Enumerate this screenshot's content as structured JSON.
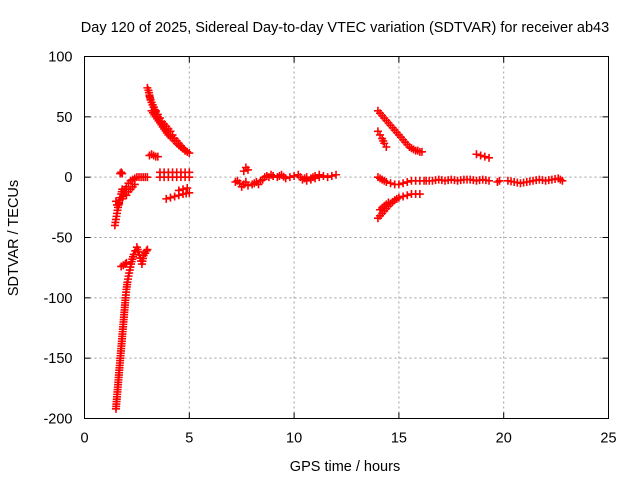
{
  "chart_data": {
    "type": "scatter",
    "title": "Day 120 of 2025, Sidereal Day-to-day VTEC variation (SDTVAR) for receiver ab43",
    "xlabel": "GPS time / hours",
    "ylabel": "SDTVAR / TECUs",
    "xlim": [
      0,
      25
    ],
    "ylim": [
      -200,
      100
    ],
    "xticks": [
      0,
      5,
      10,
      15,
      20,
      25
    ],
    "yticks": [
      -200,
      -150,
      -100,
      -50,
      0,
      50,
      100
    ],
    "grid": true,
    "marker": "plus",
    "colors": {
      "marker": "#ff0000",
      "grid": "#a0a0a0",
      "axis": "#000000"
    },
    "series": [
      {
        "name": "SDTVAR",
        "segments": [
          {
            "x": [
              1.5,
              1.53,
              1.56,
              1.6,
              1.64,
              1.68,
              1.72,
              1.76,
              1.8,
              1.84,
              1.88,
              1.92,
              1.96,
              2.0,
              2.05,
              2.1,
              2.16,
              2.22,
              2.28,
              2.35,
              2.42,
              2.5,
              2.58,
              2.66,
              2.74,
              2.82,
              2.9,
              2.96,
              3.0
            ],
            "y": [
              -192,
              -186,
              -180,
              -172,
              -164,
              -156,
              -148,
              -140,
              -132,
              -124,
              -116,
              -108,
              -100,
              -93,
              -87,
              -82,
              -77,
              -72,
              -68,
              -64,
              -61,
              -58,
              -62,
              -67,
              -72,
              -65,
              -63,
              -61,
              -60
            ]
          },
          {
            "x": [
              1.75,
              1.85,
              1.95,
              2.0
            ],
            "y": [
              -74,
              -73,
              -72,
              -71
            ]
          },
          {
            "x": [
              1.45,
              1.5,
              1.55,
              1.6,
              1.65,
              1.7,
              1.75,
              1.8
            ],
            "y": [
              -40,
              -35,
              -30,
              -25,
              -21,
              -17,
              -14,
              -10
            ]
          },
          {
            "x": [
              1.5,
              1.55,
              1.6,
              1.65
            ],
            "y": [
              -20,
              -23,
              -25,
              -22
            ]
          },
          {
            "x": [
              1.7,
              1.75,
              1.8
            ],
            "y": [
              3,
              4,
              3
            ]
          },
          {
            "x": [
              1.8,
              1.9,
              2.0,
              2.1,
              2.2,
              2.3,
              2.4,
              2.5,
              2.6,
              2.7,
              2.8,
              2.9,
              3.0
            ],
            "y": [
              -18,
              -12,
              -8,
              -5,
              -3,
              -2,
              -1,
              0,
              0,
              0,
              0,
              0,
              0
            ]
          },
          {
            "x": [
              2.0,
              2.1,
              2.2,
              2.3,
              2.4
            ],
            "y": [
              -15,
              -12,
              -10,
              -8,
              -6
            ]
          },
          {
            "x": [
              3.0,
              3.05,
              3.1,
              3.15,
              3.2,
              3.25,
              3.3,
              3.35,
              3.4,
              3.45,
              3.5
            ],
            "y": [
              74,
              72,
              68,
              64,
              62,
              60,
              58,
              56,
              54,
              52,
              50
            ]
          },
          {
            "x": [
              3.1,
              3.2,
              3.3,
              3.4,
              3.5,
              3.6,
              3.7,
              3.8,
              3.9,
              4.0,
              4.1,
              4.2,
              4.3,
              4.4,
              4.5,
              4.6,
              4.7,
              4.8,
              4.9,
              5.0
            ],
            "y": [
              67,
              62,
              58,
              55,
              52,
              49,
              46,
              44,
              42,
              40,
              38,
              35,
              32,
              30,
              28,
              26,
              24,
              22,
              21,
              20
            ]
          },
          {
            "x": [
              3.2,
              3.4,
              3.6,
              3.8,
              4.0,
              4.2,
              4.4,
              4.6,
              4.8
            ],
            "y": [
              55,
              50,
              45,
              40,
              35,
              32,
              28,
              25,
              22
            ]
          },
          {
            "x": [
              3.1,
              3.2,
              3.3,
              3.4,
              3.5
            ],
            "y": [
              18,
              19,
              18,
              17,
              17
            ]
          },
          {
            "x": [
              3.6,
              3.8,
              4.0,
              4.2,
              4.4,
              4.6,
              4.8,
              5.0
            ],
            "y": [
              4,
              4,
              4,
              4,
              4,
              4,
              4,
              4
            ]
          },
          {
            "x": [
              3.6,
              3.8,
              4.0,
              4.2,
              4.4,
              4.6,
              4.8,
              5.0
            ],
            "y": [
              0,
              0,
              0,
              0,
              0,
              0,
              0,
              0
            ]
          },
          {
            "x": [
              3.9,
              4.1,
              4.3,
              4.5,
              4.7,
              5.0
            ],
            "y": [
              -18,
              -17,
              -16,
              -15,
              -14,
              -13
            ]
          },
          {
            "x": [
              4.5,
              4.7,
              4.9
            ],
            "y": [
              -11,
              -10,
              -9
            ]
          },
          {
            "x": [
              7.2,
              7.3,
              7.4,
              7.5,
              7.6,
              7.7,
              7.8,
              8.0,
              8.1,
              8.2,
              8.3,
              8.4,
              8.5,
              8.6,
              8.7,
              8.8,
              8.9,
              9.0
            ],
            "y": [
              -4,
              -3,
              -5,
              -8,
              -6,
              -4,
              -7,
              -6,
              -5,
              -4,
              -6,
              -3,
              -2,
              0,
              1,
              0,
              2,
              1
            ]
          },
          {
            "x": [
              7.6,
              7.7,
              7.8
            ],
            "y": [
              5,
              8,
              6
            ]
          },
          {
            "x": [
              9.0,
              9.2,
              9.4,
              9.6,
              9.8,
              10.0,
              10.2,
              10.4,
              10.6,
              10.8,
              11.0,
              11.2,
              11.4,
              11.6,
              11.8,
              12.0
            ],
            "y": [
              1,
              0,
              2,
              -1,
              0,
              1,
              2,
              -2,
              0,
              -1,
              1,
              2,
              1,
              0,
              1,
              2
            ]
          },
          {
            "x": [
              10.6,
              10.8,
              11.0,
              11.2
            ],
            "y": [
              -3,
              -2,
              -1,
              0
            ]
          },
          {
            "x": [
              14.0,
              14.1,
              14.2,
              14.3,
              14.4,
              14.5,
              14.6,
              14.7,
              14.8,
              14.9,
              15.0,
              15.1,
              15.2,
              15.3,
              15.4,
              15.5,
              15.6,
              15.7,
              15.8,
              15.9,
              16.0,
              16.1
            ],
            "y": [
              55,
              53,
              51,
              49,
              47,
              45,
              43,
              41,
              39,
              37,
              35,
              33,
              31,
              29,
              27,
              25,
              24,
              23,
              22,
              22,
              21,
              21
            ]
          },
          {
            "x": [
              14.0,
              14.1,
              14.2,
              14.3,
              14.4
            ],
            "y": [
              38,
              35,
              32,
              28,
              25
            ]
          },
          {
            "x": [
              14.0,
              14.2,
              14.4,
              14.6,
              14.8,
              15.0,
              15.2,
              15.4,
              15.6,
              15.8,
              16.0,
              16.2
            ],
            "y": [
              0,
              -2,
              -4,
              -5,
              -6,
              -6,
              -5,
              -4,
              -3,
              -3,
              -3,
              -3
            ]
          },
          {
            "x": [
              14.0,
              14.2,
              14.4,
              14.6,
              14.8,
              15.0,
              15.2,
              15.4,
              15.6,
              15.8,
              16.0
            ],
            "y": [
              -34,
              -30,
              -26,
              -22,
              -19,
              -17,
              -16,
              -15,
              -14,
              -14,
              -14
            ]
          },
          {
            "x": [
              14.1,
              14.3,
              14.5
            ],
            "y": [
              -27,
              -24,
              -21
            ]
          },
          {
            "x": [
              16.3,
              16.6,
              16.9,
              17.2,
              17.5,
              17.8,
              18.1,
              18.4,
              18.7,
              19.0,
              19.3
            ],
            "y": [
              -3,
              -3,
              -2,
              -3,
              -2,
              -3,
              -2,
              -2,
              -3,
              -2,
              -3
            ]
          },
          {
            "x": [
              18.7,
              18.9,
              19.1,
              19.3
            ],
            "y": [
              19,
              18,
              17,
              16
            ]
          },
          {
            "x": [
              19.7,
              19.8
            ],
            "y": [
              -4,
              -3
            ]
          },
          {
            "x": [
              20.2,
              20.5,
              20.8,
              21.1,
              21.4,
              21.7,
              22.0,
              22.3,
              22.6,
              22.8
            ],
            "y": [
              -3,
              -4,
              -5,
              -4,
              -3,
              -2,
              -3,
              -2,
              -1,
              -3
            ]
          }
        ]
      }
    ]
  }
}
